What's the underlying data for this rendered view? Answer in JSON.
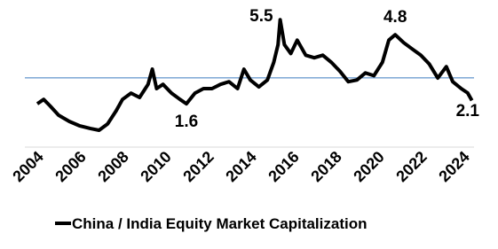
{
  "chart_data": {
    "type": "line",
    "x": [
      2004.0,
      2004.3,
      2004.6,
      2005.0,
      2005.5,
      2006.0,
      2006.5,
      2006.9,
      2007.3,
      2007.7,
      2008.0,
      2008.4,
      2008.8,
      2009.2,
      2009.4,
      2009.6,
      2009.9,
      2010.3,
      2010.7,
      2011.0,
      2011.4,
      2011.8,
      2012.2,
      2012.6,
      2013.0,
      2013.4,
      2013.7,
      2014.0,
      2014.4,
      2014.8,
      2015.1,
      2015.3,
      2015.4,
      2015.6,
      2015.9,
      2016.2,
      2016.6,
      2017.0,
      2017.4,
      2017.8,
      2018.2,
      2018.6,
      2019.0,
      2019.4,
      2019.8,
      2020.2,
      2020.5,
      2020.8,
      2021.2,
      2021.6,
      2022.0,
      2022.4,
      2022.8,
      2023.2,
      2023.5,
      2023.9,
      2024.2,
      2024.4
    ],
    "series": [
      {
        "name": "China / India Equity Market Capitalization",
        "color": "#000000",
        "values": [
          1.6,
          1.8,
          1.5,
          1.07,
          0.78,
          0.57,
          0.45,
          0.37,
          0.66,
          1.27,
          1.8,
          2.09,
          1.89,
          2.5,
          3.2,
          2.3,
          2.5,
          2.09,
          1.8,
          1.6,
          2.09,
          2.3,
          2.3,
          2.5,
          2.62,
          2.3,
          3.2,
          2.7,
          2.38,
          2.7,
          3.52,
          4.34,
          5.5,
          4.34,
          3.93,
          4.55,
          3.85,
          3.73,
          3.85,
          3.52,
          3.11,
          2.62,
          2.7,
          3.03,
          2.9,
          3.52,
          4.55,
          4.8,
          4.43,
          4.14,
          3.85,
          3.44,
          2.79,
          3.32,
          2.62,
          2.3,
          2.1,
          1.75
        ]
      }
    ],
    "xlim": [
      2004,
      2024.5
    ],
    "xticks": [
      2004,
      2006,
      2008,
      2010,
      2012,
      2014,
      2016,
      2018,
      2020,
      2022,
      2024
    ],
    "ylim": [
      0,
      6
    ],
    "reference_line": {
      "value": 2.8,
      "color": "#3a7abf"
    },
    "annotations": [
      {
        "label": "5.5",
        "x": 2015.4,
        "y": 5.5,
        "position": "left"
      },
      {
        "label": "4.8",
        "x": 2020.8,
        "y": 4.8,
        "position": "above"
      },
      {
        "label": "1.6",
        "x": 2011.0,
        "y": 1.6,
        "position": "below"
      },
      {
        "label": "2.1",
        "x": 2024.2,
        "y": 2.1,
        "position": "below"
      }
    ],
    "legend": "bottom"
  }
}
